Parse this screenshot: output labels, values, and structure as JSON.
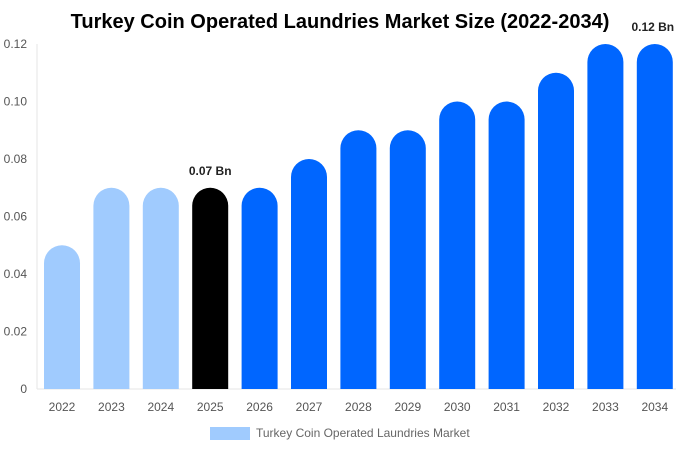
{
  "chart_data": {
    "type": "bar",
    "title": "Turkey Coin Operated Laundries Market Size (2022-2034)",
    "categories": [
      "2022",
      "2023",
      "2024",
      "2025",
      "2026",
      "2027",
      "2028",
      "2029",
      "2030",
      "2031",
      "2032",
      "2033",
      "2034"
    ],
    "series": [
      {
        "name": "Turkey Coin Operated Laundries Market",
        "values": [
          0.05,
          0.07,
          0.07,
          0.07,
          0.07,
          0.08,
          0.09,
          0.09,
          0.1,
          0.1,
          0.11,
          0.12,
          0.12
        ]
      }
    ],
    "ylim": [
      0,
      0.12
    ],
    "yticks": [
      "0",
      "0.02",
      "0.04",
      "0.06",
      "0.08",
      "0.10",
      "0.12"
    ],
    "data_labels": [
      {
        "category": "2025",
        "text": "0.07 Bn"
      },
      {
        "category": "2034",
        "text": "0.12 Bn"
      }
    ],
    "colors": {
      "historical": "#a0cbfe",
      "current": "#000000",
      "forecast": "#0066ff"
    },
    "color_groups": [
      "historical",
      "historical",
      "historical",
      "current",
      "forecast",
      "forecast",
      "forecast",
      "forecast",
      "forecast",
      "forecast",
      "forecast",
      "forecast",
      "forecast"
    ],
    "grid": false,
    "legend_placement": "bottom"
  }
}
